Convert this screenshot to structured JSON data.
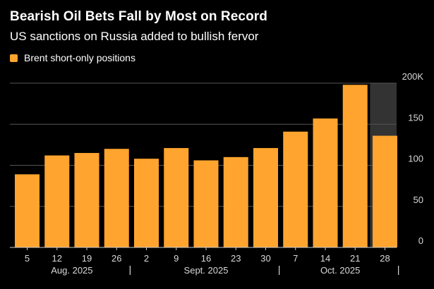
{
  "header": {
    "title": "Bearish Oil Bets Fall by Most on Record",
    "subtitle": "US sanctions on Russia added to bullish fervor"
  },
  "colors": {
    "bar": "#ffa42e",
    "background": "#000000",
    "gridline": "#555555",
    "highlight_band": "#333333",
    "text": "#ffffff",
    "axis_text": "#d9d9d9"
  },
  "chart_data": {
    "type": "bar",
    "title": "Bearish Oil Bets Fall by Most on Record",
    "subtitle": "US sanctions on Russia added to bullish fervor",
    "legend": [
      {
        "name": "Brent short-only positions",
        "color": "#ffa42e"
      }
    ],
    "legend_position": "top-left",
    "categories": [
      "5",
      "12",
      "19",
      "26",
      "2",
      "9",
      "16",
      "23",
      "30",
      "7",
      "14",
      "21",
      "28"
    ],
    "series": [
      {
        "name": "Brent short-only positions",
        "values": [
          89,
          112,
          115,
          120,
          108,
          121,
          106,
          110,
          121,
          141,
          157,
          198,
          136
        ]
      }
    ],
    "ylim": [
      0,
      200
    ],
    "yticks": [
      0,
      50,
      100,
      150,
      200
    ],
    "ytick_labels": [
      "0",
      "50",
      "100",
      "150",
      "200K"
    ],
    "y_axis_side": "right",
    "grid": true,
    "month_groups": [
      {
        "label": "Aug. 2025",
        "start": 0,
        "end": 3
      },
      {
        "label": "Sept. 2025",
        "start": 4,
        "end": 8
      },
      {
        "label": "Oct. 2025",
        "start": 9,
        "end": 12
      }
    ],
    "highlight_band": {
      "from_category": 11,
      "to_category": 12,
      "note": "shaded region behind latest period"
    },
    "xlabel": "",
    "ylabel": ""
  }
}
